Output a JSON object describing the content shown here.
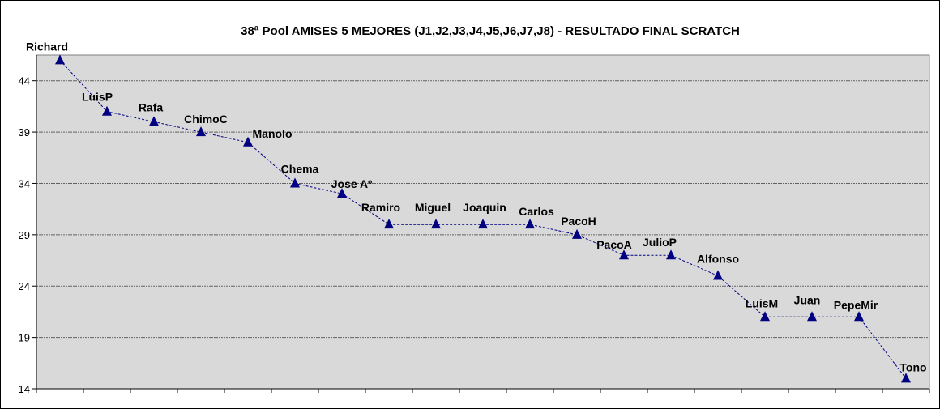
{
  "chart_data": {
    "type": "line",
    "title": "38ª Pool AMISES 5 MEJORES (J1,J2,J3,J4,J5,J6,J7,J8)  - RESULTADO FINAL SCRATCH",
    "xlabel": "",
    "ylabel": "",
    "ylim": [
      14,
      46.5
    ],
    "yticks": [
      14,
      19,
      24,
      29,
      34,
      39,
      44
    ],
    "grid": true,
    "legend": "none",
    "marker": "triangle",
    "colors": {
      "plot_background": "#d9d9d9",
      "series": "#000080",
      "grid": "#808080"
    },
    "categories": [
      "Richard",
      "LuisP",
      "Rafa",
      "ChimoC",
      "Manolo",
      "Chema",
      "Jose Aº",
      "Ramiro",
      "Miguel",
      "Joaquin",
      "Carlos",
      "PacoH",
      "PacoA",
      "JulioP",
      "Alfonso",
      "LuisM",
      "Juan",
      "PepeMir",
      "Tono"
    ],
    "values": [
      46,
      41,
      40,
      39,
      38,
      34,
      33,
      30,
      30,
      30,
      30,
      29,
      27,
      27,
      25,
      21,
      21,
      21,
      15
    ]
  }
}
